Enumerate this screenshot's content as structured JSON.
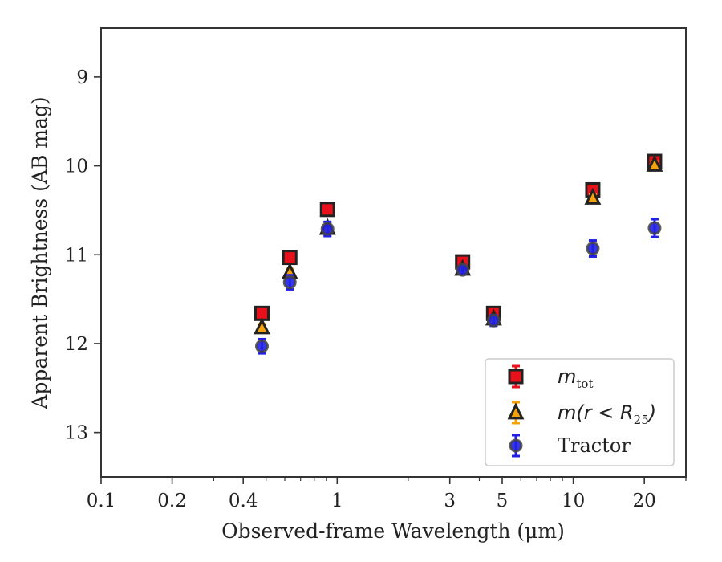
{
  "chart_data": {
    "type": "scatter",
    "xscale": "log",
    "xlim": [
      0.1,
      30
    ],
    "ylim": [
      13.5,
      8.45
    ],
    "y_inverted": true,
    "xlabel": "Observed-frame Wavelength (μm)",
    "ylabel": "Apparent Brightness (AB mag)",
    "x_ticks": [
      0.1,
      0.2,
      0.4,
      1,
      3,
      5,
      10,
      20
    ],
    "x_tick_labels": [
      "0.1",
      "0.2",
      "0.4",
      "1",
      "3",
      "5",
      "10",
      "20"
    ],
    "y_ticks": [
      9,
      10,
      11,
      12,
      13
    ],
    "y_tick_labels": [
      "9",
      "10",
      "11",
      "12",
      "13"
    ],
    "legend_position": "lower-right",
    "series": [
      {
        "name": "m_tot",
        "legend_label": "m",
        "legend_sub": "tot",
        "marker": "square",
        "fill": "#e8101a",
        "edge": "#222222",
        "errcolor": "#e8101a",
        "points": [
          {
            "x": 0.48,
            "y": 11.66,
            "err": 0.05
          },
          {
            "x": 0.63,
            "y": 11.03,
            "err": 0.05
          },
          {
            "x": 0.91,
            "y": 10.49,
            "err": 0.05
          },
          {
            "x": 3.4,
            "y": 11.08,
            "err": 0.05
          },
          {
            "x": 4.6,
            "y": 11.66,
            "err": 0.05
          },
          {
            "x": 12.1,
            "y": 10.27,
            "err": 0.05
          },
          {
            "x": 22.1,
            "y": 9.95,
            "err": 0.05
          }
        ]
      },
      {
        "name": "m(r<R25)",
        "legend_label": "m(r < R",
        "legend_sub": "25",
        "legend_tail": ")",
        "marker": "triangle",
        "fill": "#f5a20a",
        "edge": "#222222",
        "errcolor": "#f5a20a",
        "points": [
          {
            "x": 0.48,
            "y": 11.82,
            "err": 0.04
          },
          {
            "x": 0.63,
            "y": 11.2,
            "err": 0.04
          },
          {
            "x": 0.91,
            "y": 10.7,
            "err": 0.04
          },
          {
            "x": 3.4,
            "y": 11.16,
            "err": 0.04
          },
          {
            "x": 4.6,
            "y": 11.72,
            "err": 0.04
          },
          {
            "x": 12.1,
            "y": 10.36,
            "err": 0.04
          },
          {
            "x": 22.1,
            "y": 9.99,
            "err": 0.04
          }
        ]
      },
      {
        "name": "Tractor",
        "legend_label": "Tractor",
        "marker": "circle",
        "fill": "#2020e6",
        "edge": "#444444",
        "errcolor": "#2020e6",
        "points": [
          {
            "x": 0.48,
            "y": 12.03,
            "err": 0.08
          },
          {
            "x": 0.63,
            "y": 11.31,
            "err": 0.08
          },
          {
            "x": 0.91,
            "y": 10.71,
            "err": 0.08
          },
          {
            "x": 3.4,
            "y": 11.17,
            "err": 0.05
          },
          {
            "x": 4.6,
            "y": 11.74,
            "err": 0.06
          },
          {
            "x": 12.1,
            "y": 10.93,
            "err": 0.09
          },
          {
            "x": 22.1,
            "y": 10.7,
            "err": 0.1
          }
        ]
      }
    ]
  }
}
